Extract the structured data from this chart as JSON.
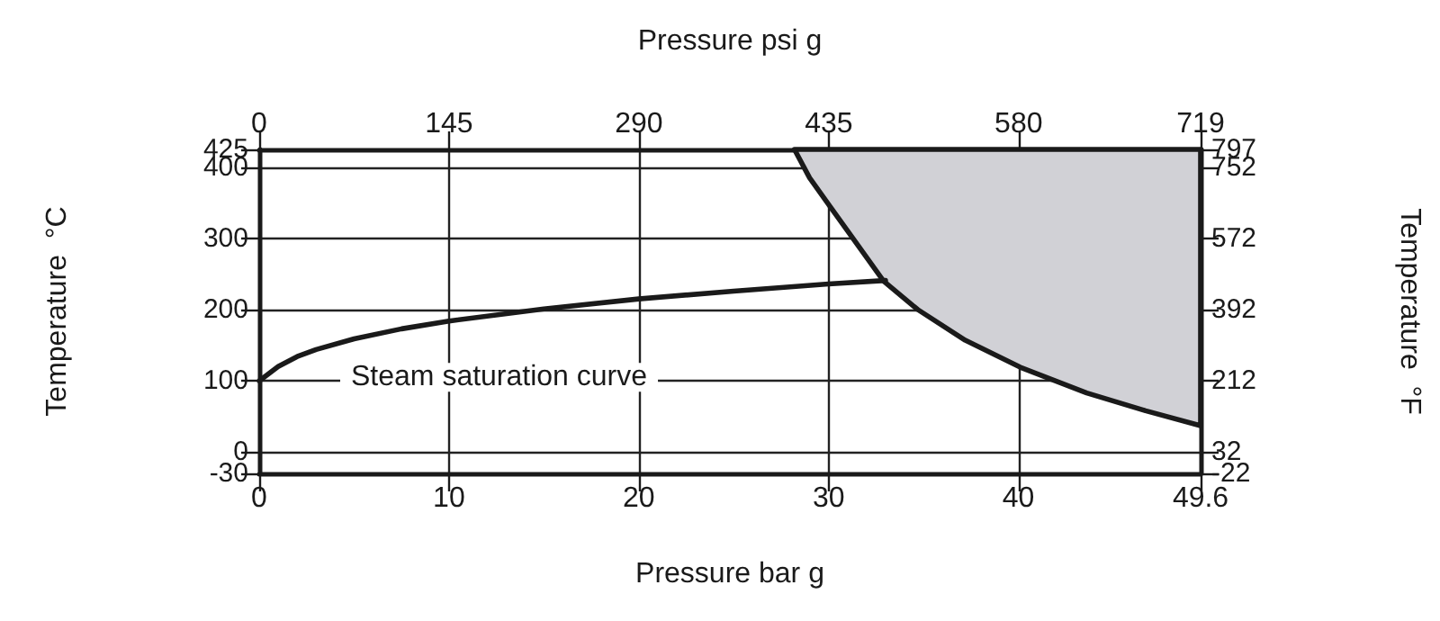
{
  "chart_data": {
    "type": "line",
    "xlabel": "Pressure bar g",
    "x2label": "Pressure psi g",
    "ylabel": "Temperature  °C",
    "y2label": "Temperature  °F",
    "annotations": [
      "Steam saturation curve"
    ],
    "xlim": [
      0,
      49.6
    ],
    "xticks": [
      0,
      10,
      20,
      30,
      40,
      49.6
    ],
    "x2lim": [
      0,
      719
    ],
    "x2ticks": [
      0,
      145,
      290,
      435,
      580,
      719
    ],
    "ylim": [
      -30,
      425
    ],
    "yticks": [
      -30,
      0,
      100,
      200,
      300,
      400,
      425
    ],
    "y2lim": [
      -22,
      797
    ],
    "y2ticks": [
      -22,
      32,
      212,
      392,
      572,
      752,
      797
    ],
    "grid": true,
    "marker": "none",
    "series": [
      {
        "type": "line",
        "color": "#1a1a1a",
        "x": [
          0,
          1,
          2,
          3,
          5,
          7.5,
          10,
          15,
          20,
          25,
          30,
          33
        ],
        "values": [
          100,
          120,
          134,
          144,
          159,
          173,
          184,
          201,
          215,
          226,
          236,
          241
        ]
      },
      {
        "type": "area",
        "color": "#d1d1d6",
        "x": [
          28.2,
          29,
          30.1,
          32.9,
          34.7,
          37.2,
          40.1,
          43.6,
          46.7,
          49.6,
          49.6
        ],
        "values": [
          425,
          385,
          344,
          240,
          200,
          157,
          119,
          83,
          58,
          37,
          425
        ]
      }
    ]
  }
}
